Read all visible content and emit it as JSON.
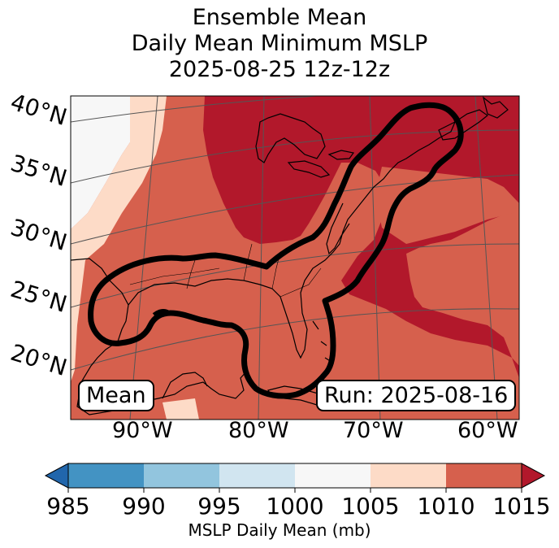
{
  "title": {
    "line1": "Ensemble Mean",
    "line2": "Daily Mean Minimum MSLP",
    "line3": "2025-08-25 12z-12z"
  },
  "map": {
    "lat_labels": [
      "40°N",
      "35°N",
      "30°N",
      "25°N",
      "20°N"
    ],
    "lon_labels": [
      "90°W",
      "80°W",
      "70°W",
      "60°W"
    ],
    "mean_label": "Mean",
    "run_label": "Run: 2025-08-16"
  },
  "colorbar": {
    "label": "MSLP Daily Mean (mb)",
    "ticks": [
      "985",
      "990",
      "995",
      "1000",
      "1005",
      "1010",
      "1015"
    ],
    "colors": {
      "under": "#2166ac",
      "985-990": "#4393c3",
      "990-995": "#92c5de",
      "995-1000": "#d1e5f0",
      "1000-1005": "#f7f7f7",
      "1005-1010": "#fddbc7",
      "1010-1015": "#d6604d",
      "over": "#b2182b"
    }
  }
}
